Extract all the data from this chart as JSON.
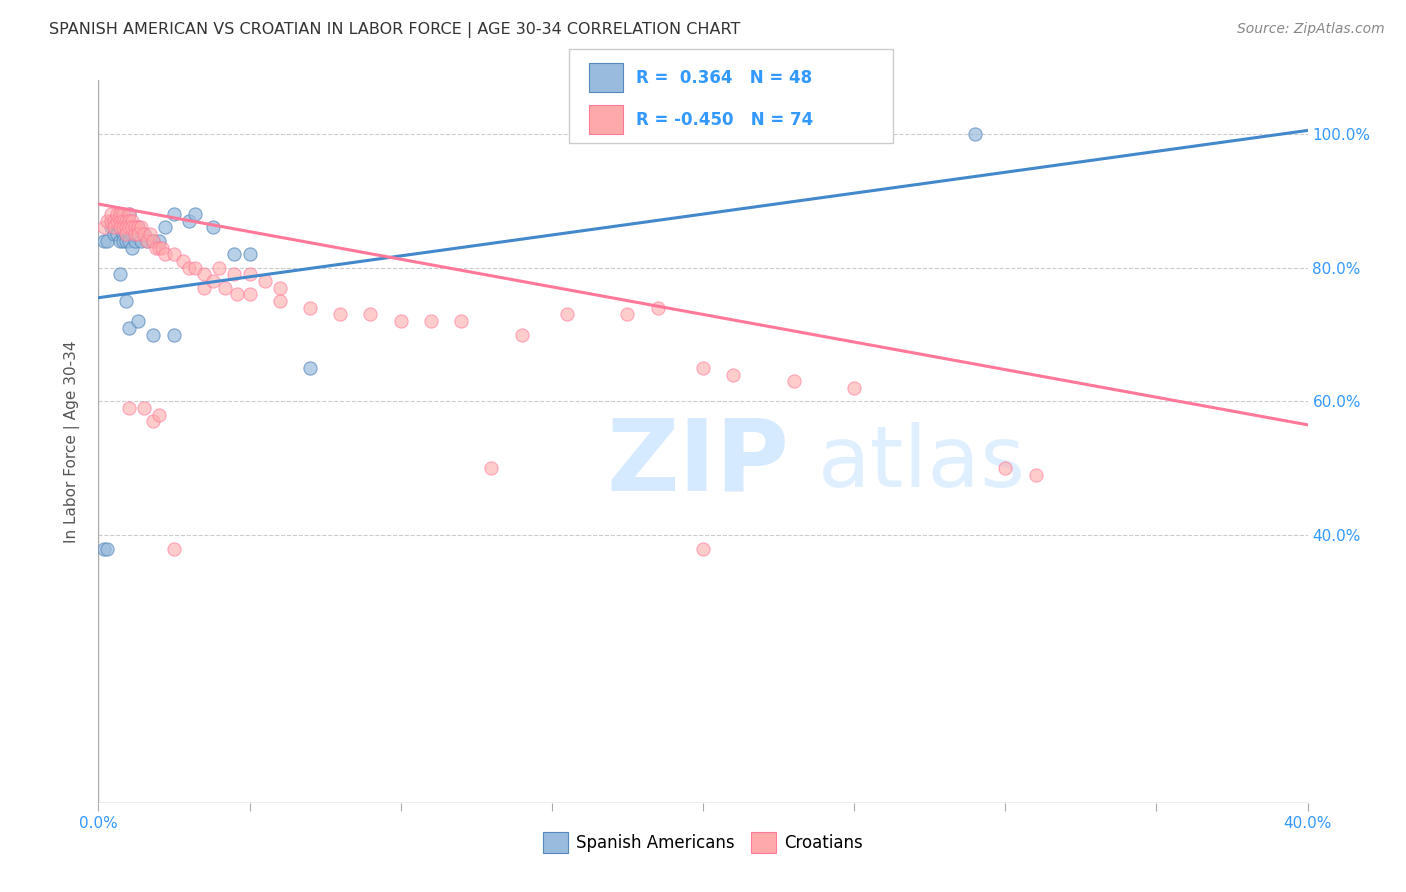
{
  "title": "SPANISH AMERICAN VS CROATIAN IN LABOR FORCE | AGE 30-34 CORRELATION CHART",
  "source": "Source: ZipAtlas.com",
  "ylabel": "In Labor Force | Age 30-34",
  "xlim": [
    0.0,
    0.4
  ],
  "ylim": [
    0.0,
    1.08
  ],
  "yticks": [
    0.4,
    0.6,
    0.8,
    1.0
  ],
  "ytick_labels": [
    "40.0%",
    "60.0%",
    "80.0%",
    "100.0%"
  ],
  "xticks": [
    0.0,
    0.05,
    0.1,
    0.15,
    0.2,
    0.25,
    0.3,
    0.35,
    0.4
  ],
  "xtick_left_label": "0.0%",
  "xtick_right_label": "40.0%",
  "legend_label1": "Spanish Americans",
  "legend_label2": "Croatians",
  "r1": 0.364,
  "n1": 48,
  "r2": -0.45,
  "n2": 74,
  "color_blue": "#99BBDD",
  "color_blue_edge": "#5588BB",
  "color_pink": "#FFAAAA",
  "color_pink_edge": "#FF7799",
  "color_blue_line": "#4488CC",
  "color_pink_line": "#FF7799",
  "blue_scatter_x": [
    0.002,
    0.003,
    0.004,
    0.005,
    0.005,
    0.006,
    0.006,
    0.007,
    0.007,
    0.007,
    0.008,
    0.008,
    0.008,
    0.009,
    0.009,
    0.009,
    0.01,
    0.01,
    0.01,
    0.01,
    0.011,
    0.011,
    0.012,
    0.012,
    0.013,
    0.013,
    0.014,
    0.015,
    0.016,
    0.018,
    0.02,
    0.022,
    0.025,
    0.03,
    0.032,
    0.038,
    0.045,
    0.05,
    0.002,
    0.003,
    0.007,
    0.009,
    0.01,
    0.013,
    0.018,
    0.025,
    0.07,
    0.29
  ],
  "blue_scatter_y": [
    0.84,
    0.84,
    0.86,
    0.86,
    0.85,
    0.85,
    0.87,
    0.88,
    0.86,
    0.84,
    0.87,
    0.85,
    0.84,
    0.86,
    0.85,
    0.84,
    0.88,
    0.86,
    0.85,
    0.84,
    0.85,
    0.83,
    0.85,
    0.84,
    0.86,
    0.85,
    0.84,
    0.85,
    0.84,
    0.84,
    0.84,
    0.86,
    0.88,
    0.87,
    0.88,
    0.86,
    0.82,
    0.82,
    0.38,
    0.38,
    0.79,
    0.75,
    0.71,
    0.72,
    0.7,
    0.7,
    0.65,
    1.0
  ],
  "pink_scatter_x": [
    0.002,
    0.003,
    0.004,
    0.004,
    0.005,
    0.005,
    0.006,
    0.006,
    0.007,
    0.007,
    0.007,
    0.008,
    0.008,
    0.008,
    0.009,
    0.009,
    0.009,
    0.01,
    0.01,
    0.01,
    0.011,
    0.011,
    0.012,
    0.012,
    0.013,
    0.013,
    0.014,
    0.015,
    0.016,
    0.017,
    0.018,
    0.019,
    0.02,
    0.021,
    0.022,
    0.025,
    0.028,
    0.03,
    0.032,
    0.035,
    0.04,
    0.045,
    0.05,
    0.055,
    0.06,
    0.025,
    0.2,
    0.21,
    0.23,
    0.25,
    0.155,
    0.185,
    0.175,
    0.13,
    0.3,
    0.31,
    0.01,
    0.015,
    0.018,
    0.02,
    0.035,
    0.038,
    0.042,
    0.046,
    0.05,
    0.06,
    0.07,
    0.08,
    0.09,
    0.1,
    0.11,
    0.12,
    0.14,
    0.2
  ],
  "pink_scatter_y": [
    0.86,
    0.87,
    0.87,
    0.88,
    0.87,
    0.86,
    0.87,
    0.88,
    0.88,
    0.87,
    0.86,
    0.88,
    0.87,
    0.86,
    0.87,
    0.86,
    0.85,
    0.88,
    0.87,
    0.86,
    0.87,
    0.86,
    0.86,
    0.85,
    0.86,
    0.85,
    0.86,
    0.85,
    0.84,
    0.85,
    0.84,
    0.83,
    0.83,
    0.83,
    0.82,
    0.82,
    0.81,
    0.8,
    0.8,
    0.79,
    0.8,
    0.79,
    0.79,
    0.78,
    0.77,
    0.38,
    0.65,
    0.64,
    0.63,
    0.62,
    0.73,
    0.74,
    0.73,
    0.5,
    0.5,
    0.49,
    0.59,
    0.59,
    0.57,
    0.58,
    0.77,
    0.78,
    0.77,
    0.76,
    0.76,
    0.75,
    0.74,
    0.73,
    0.73,
    0.72,
    0.72,
    0.72,
    0.7,
    0.38
  ]
}
